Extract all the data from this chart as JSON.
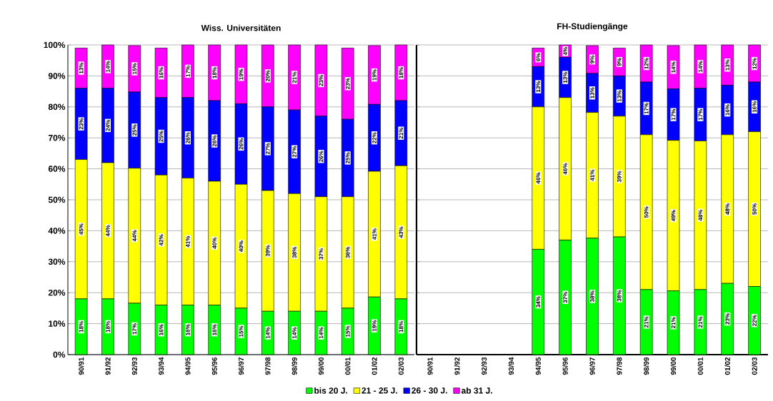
{
  "chart_data": [
    {
      "type": "bar",
      "stacked": true,
      "title": "Wiss. Universitäten",
      "categories": [
        "90/91",
        "91/92",
        "92/93",
        "93/94",
        "94/95",
        "95/96",
        "96/97",
        "97/98",
        "98/99",
        "99/00",
        "00/01",
        "01/02",
        "02/03"
      ],
      "series": [
        {
          "name": "bis 20 J.",
          "color": "#00ff00",
          "values": [
            18,
            18,
            16.6,
            16,
            16,
            16,
            15,
            14,
            14,
            14,
            15,
            18.6,
            18
          ],
          "value_labels": [
            "18%",
            "18%",
            "17%",
            "16%",
            "16%",
            "16%",
            "15%",
            "14%",
            "14%",
            "14%",
            "15%",
            "19%",
            "18%"
          ]
        },
        {
          "name": "21 - 25 J.",
          "color": "#ffff00",
          "values": [
            45,
            44,
            43.6,
            42,
            41,
            40,
            40,
            39,
            38,
            37,
            36,
            40.6,
            43
          ],
          "value_labels": [
            "45%",
            "44%",
            "44%",
            "42%",
            "41%",
            "40%",
            "40%",
            "39%",
            "38%",
            "37%",
            "36%",
            "41%",
            "43%"
          ]
        },
        {
          "name": "26 - 30 J.",
          "color": "#0000ff",
          "values": [
            23,
            24,
            24.6,
            25,
            26,
            26,
            26,
            27,
            27,
            26,
            25,
            21.6,
            21
          ],
          "value_labels": [
            "23%",
            "24%",
            "25%",
            "25%",
            "26%",
            "26%",
            "26%",
            "27%",
            "27%",
            "26%",
            "25%",
            "22%",
            "21%"
          ]
        },
        {
          "name": "ab 31 J.",
          "color": "#ff00ff",
          "values": [
            13,
            14,
            15,
            16,
            17,
            18,
            19,
            20,
            21,
            23,
            23,
            19,
            18
          ],
          "value_labels": [
            "13%",
            "14%",
            "15%",
            "16%",
            "17%",
            "18%",
            "19%",
            "20%",
            "21%",
            "23%",
            "23%",
            "19%",
            "18%"
          ]
        }
      ],
      "ylim": [
        0,
        100
      ],
      "yticks": [
        {
          "value": 0,
          "label": "0%"
        },
        {
          "value": 10,
          "label": "10%"
        },
        {
          "value": 20,
          "label": "20%"
        },
        {
          "value": 30,
          "label": "30%"
        },
        {
          "value": 40,
          "label": "40%"
        },
        {
          "value": 50,
          "label": "50%"
        },
        {
          "value": 60,
          "label": "60%"
        },
        {
          "value": 70,
          "label": "70%"
        },
        {
          "value": 80,
          "label": "80%"
        },
        {
          "value": 90,
          "label": "90%"
        },
        {
          "value": 100,
          "label": "100%"
        }
      ],
      "grid": "y",
      "legend": "bottom"
    },
    {
      "type": "bar",
      "stacked": true,
      "title": "FH-Studiengänge",
      "categories": [
        "90/91",
        "91/92",
        "92/93",
        "93/94",
        "94/95",
        "95/96",
        "96/97",
        "97/98",
        "98/99",
        "99/00",
        "00/01",
        "01/02",
        "02/03"
      ],
      "series": [
        {
          "color": "#00ff00",
          "values": [
            null,
            null,
            null,
            null,
            34,
            37,
            37.6,
            38,
            21,
            20.6,
            21,
            23,
            22
          ],
          "value_labels": [
            null,
            null,
            null,
            null,
            "34%",
            "37%",
            "38%",
            "38%",
            "21%",
            "21%",
            "21%",
            "23%",
            "22%"
          ]
        },
        {
          "color": "#ffff00",
          "values": [
            null,
            null,
            null,
            null,
            46,
            46,
            40.6,
            39,
            50,
            48.6,
            48,
            48,
            50
          ],
          "value_labels": [
            null,
            null,
            null,
            null,
            "46%",
            "46%",
            "41%",
            "39%",
            "50%",
            "49%",
            "48%",
            "48%",
            "50%"
          ]
        },
        {
          "color": "#0000ff",
          "values": [
            null,
            null,
            null,
            null,
            13,
            13,
            12.6,
            13,
            17,
            16.6,
            17,
            16,
            16
          ],
          "value_labels": [
            null,
            null,
            null,
            null,
            "13%",
            "13%",
            "13%",
            "13%",
            "17%",
            "17%",
            "17%",
            "16%",
            "16%"
          ]
        },
        {
          "color": "#ff00ff",
          "values": [
            null,
            null,
            null,
            null,
            6,
            4,
            9,
            9,
            12,
            14,
            14,
            13,
            12
          ],
          "value_labels": [
            null,
            null,
            null,
            null,
            "6%",
            "4%",
            "9%",
            "9%",
            "12%",
            "14%",
            "14%",
            "13%",
            "12%"
          ]
        }
      ],
      "ylim": [
        0,
        100
      ],
      "yticks": [
        {
          "value": 0,
          "label": null
        },
        {
          "value": 10,
          "label": null
        },
        {
          "value": 20,
          "label": null
        },
        {
          "value": 30,
          "label": null
        },
        {
          "value": 40,
          "label": null
        },
        {
          "value": 50,
          "label": null
        },
        {
          "value": 60,
          "label": null
        },
        {
          "value": 70,
          "label": null
        },
        {
          "value": 80,
          "label": null
        },
        {
          "value": 90,
          "label": null
        },
        {
          "value": 100,
          "label": null
        }
      ],
      "grid": "y",
      "tick_labels": "x"
    }
  ]
}
